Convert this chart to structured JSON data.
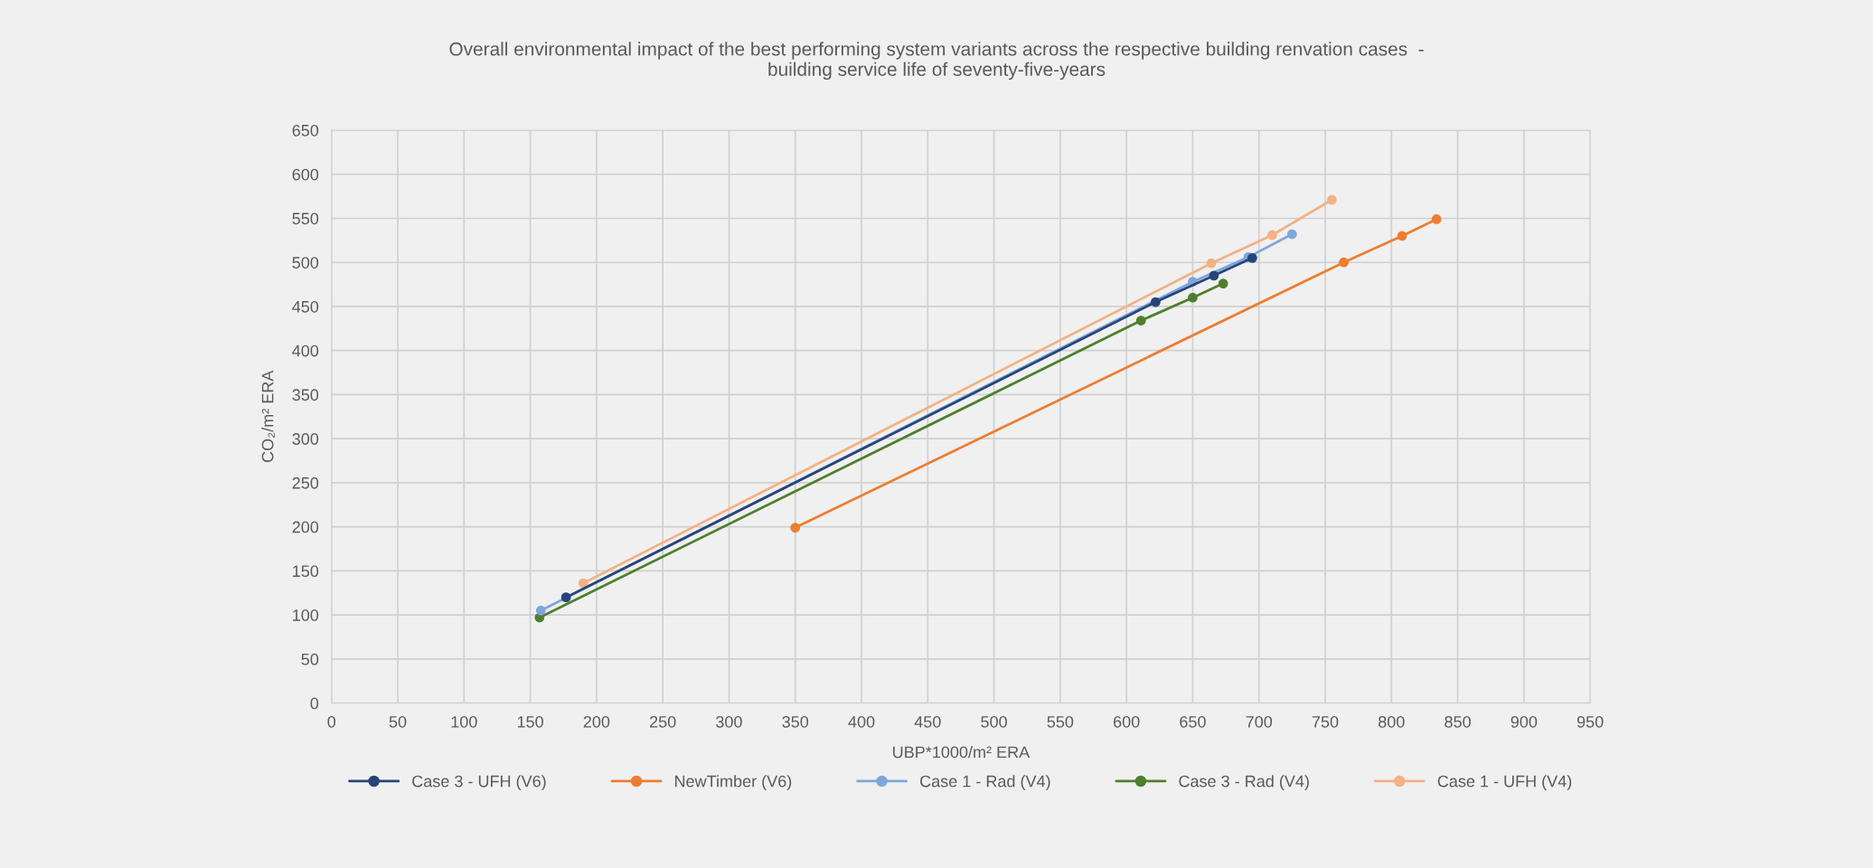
{
  "chart_data": {
    "type": "line",
    "title": "Overall environmental impact of the best performing system variants across the respective building renvation cases  -\nbuilding service life of seventy-five-years",
    "xlabel": "UBP*1000/m² ERA",
    "ylabel": "CO₂/m² ERA",
    "xlim": [
      0,
      950
    ],
    "xticks": [
      0,
      50,
      100,
      150,
      200,
      250,
      300,
      350,
      400,
      450,
      500,
      550,
      600,
      650,
      700,
      750,
      800,
      850,
      900,
      950
    ],
    "ylim": [
      0,
      650
    ],
    "yticks": [
      0,
      50,
      100,
      150,
      200,
      250,
      300,
      350,
      400,
      450,
      500,
      550,
      600,
      650
    ],
    "grid": true,
    "legend": "bottom",
    "marker": "circle",
    "line_style": "solid",
    "series": [
      {
        "name": "Case 3 - UFH (V6)",
        "color": "#264478",
        "x": [
          177,
          622,
          666,
          695
        ],
        "values": [
          120,
          455,
          485,
          505
        ]
      },
      {
        "name": "NewTimber (V6)",
        "color": "#ed7d31",
        "x": [
          350,
          764,
          808,
          834
        ],
        "values": [
          199,
          500,
          530,
          549
        ]
      },
      {
        "name": "Case 1 - Rad (V4)",
        "color": "#7fa6db",
        "x": [
          158,
          650,
          692,
          725
        ],
        "values": [
          105,
          478,
          506,
          532
        ]
      },
      {
        "name": "Case 3 - Rad (V4)",
        "color": "#4e7f2e",
        "x": [
          157,
          611,
          650,
          673
        ],
        "values": [
          97,
          434,
          460,
          476
        ]
      },
      {
        "name": "Case 1 - UFH (V4)",
        "color": "#f4b183",
        "x": [
          190,
          664,
          710,
          755
        ],
        "values": [
          136,
          499,
          531,
          571
        ]
      }
    ]
  }
}
